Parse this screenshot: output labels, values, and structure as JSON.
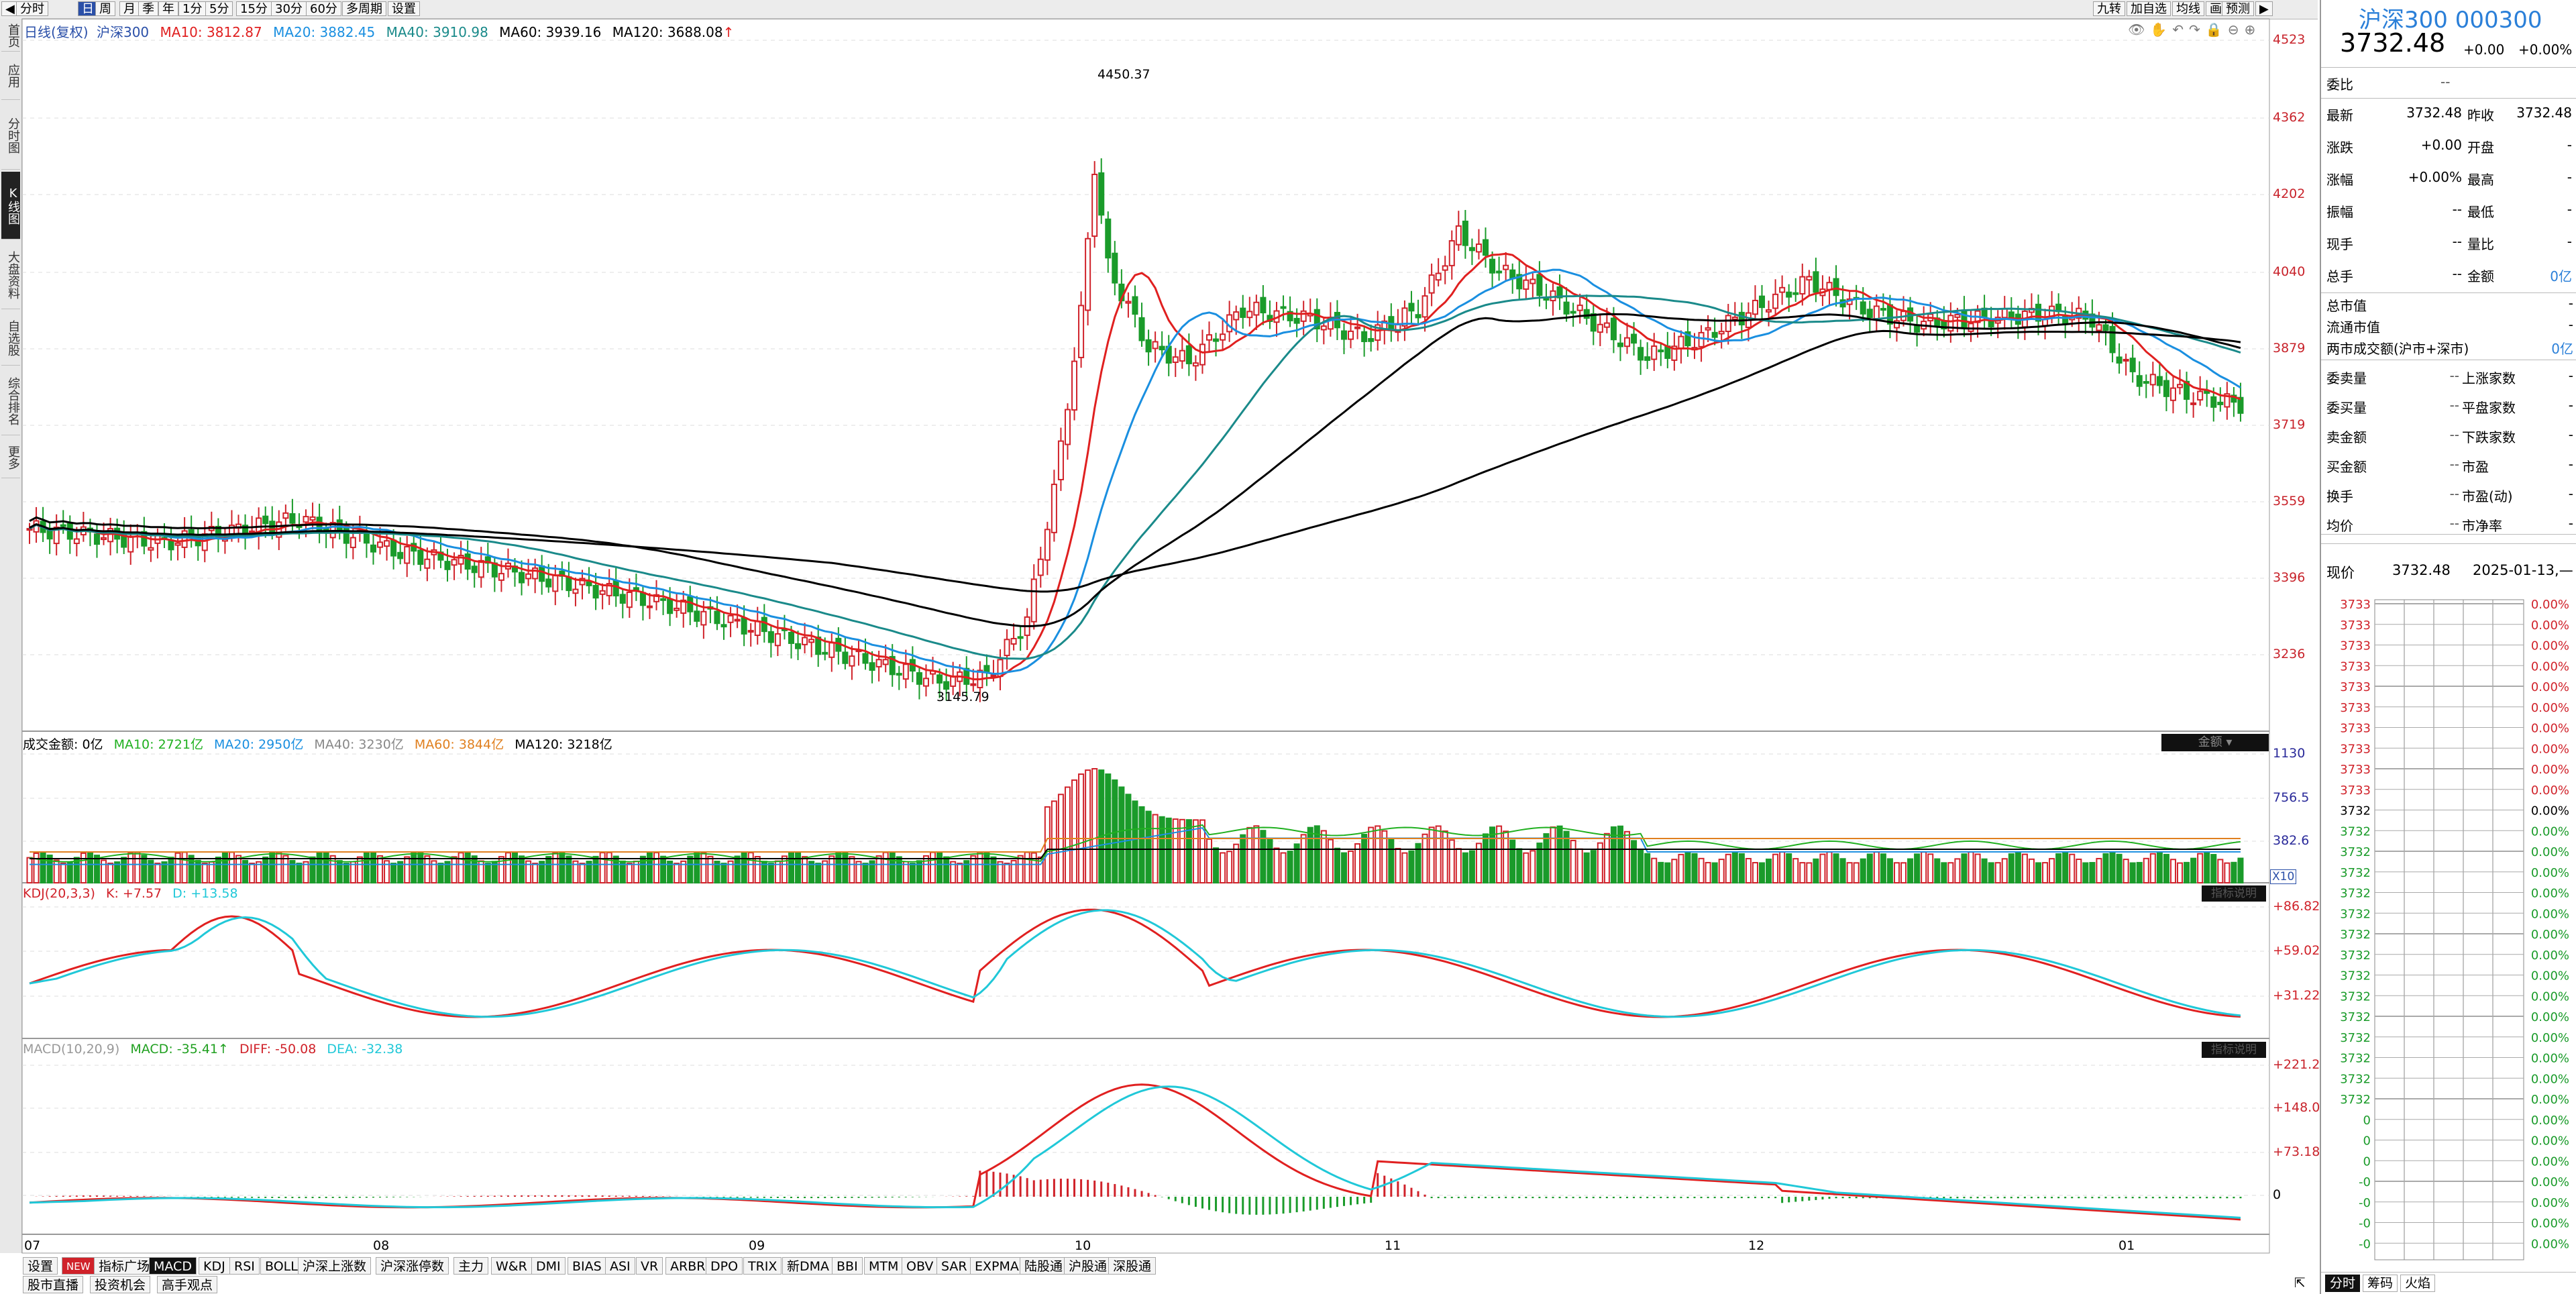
{
  "toolbar": {
    "tabs": [
      "分时",
      "日",
      "周",
      "月",
      "季",
      "年",
      "1分",
      "5分",
      "15分",
      "30分",
      "60分",
      "多周期",
      "设置"
    ],
    "selected": "日",
    "right_tools": [
      "九转",
      "加自选",
      "均线",
      "画",
      "预测"
    ]
  },
  "sidebar": [
    "首页",
    "应用",
    "分时图",
    "K线图",
    "大盘资料",
    "自选股",
    "综合排名",
    "更多"
  ],
  "sidebar_selected": "K线图",
  "main_legend": {
    "prefix": "日线(复权)",
    "name": "沪深300",
    "ma10": "MA10: 3812.87",
    "ma20": "MA20: 3882.45",
    "ma40": "MA40: 3910.98",
    "ma60": "MA60: 3939.16",
    "ma120": "MA120: 3688.08",
    "arrow": "↑"
  },
  "price_axis": [
    "4523",
    "4362",
    "4202",
    "4040",
    "3879",
    "3719",
    "3559",
    "3396",
    "3236"
  ],
  "annotations": {
    "high": "4450.37",
    "low": "3145.79"
  },
  "x_axis": [
    "07",
    "08",
    "09",
    "10",
    "11",
    "12",
    "01"
  ],
  "volume_legend": {
    "label": "成交金额: 0亿",
    "ma10": "MA10: 2721亿",
    "ma20": "MA20: 2950亿",
    "ma40": "MA40: 3230亿",
    "ma60": "MA60: 3844亿",
    "ma120": "MA120: 3218亿",
    "selector": "金额",
    "axis": [
      "1130",
      "756.5",
      "382.6"
    ],
    "unit": "X10"
  },
  "kdj_legend": {
    "label": "KDJ(20,3,3)",
    "k": "K: +7.57",
    "d": "D: +13.58",
    "axis": [
      "+86.82",
      "+59.02",
      "+31.22"
    ],
    "btn": "指标说明"
  },
  "macd_legend": {
    "label": "MACD(10,20,9)",
    "macd": "MACD: -35.41↑",
    "diff": "DIFF: -50.08",
    "dea": "DEA: -32.38",
    "axis": [
      "+221.2",
      "+148.0",
      "+73.18",
      "0"
    ],
    "btn": "指标说明"
  },
  "indicator_tabs": [
    "设置",
    "NEW",
    "指标广场",
    "MACD",
    "KDJ",
    "RSI",
    "BOLL",
    "沪深上涨数",
    "沪深涨停数",
    "主力",
    "W&R",
    "DMI",
    "BIAS",
    "ASI",
    "VR",
    "ARBR",
    "DPO",
    "TRIX",
    "新DMA",
    "BBI",
    "MTM",
    "OBV",
    "SAR",
    "EXPMA",
    "陆股通",
    "沪股通",
    "深股通"
  ],
  "indicator_selected": "MACD",
  "bottom_tabs": [
    "股市直播",
    "投资机会",
    "高手观点"
  ],
  "quote": {
    "title": "沪深300 000300",
    "price": "3732.48",
    "change": "+0.00",
    "change_pct": "+0.00%",
    "weibi_label": "委比",
    "weibi_value": "--",
    "rows": [
      {
        "l1": "最新",
        "v1": "3732.48",
        "l2": "昨收",
        "v2": "3732.48"
      },
      {
        "l1": "涨跌",
        "v1": "+0.00",
        "l2": "开盘",
        "v2": "-"
      },
      {
        "l1": "涨幅",
        "v1": "+0.00%",
        "l2": "最高",
        "v2": "-"
      },
      {
        "l1": "振幅",
        "v1": "--",
        "l2": "最低",
        "v2": "-"
      },
      {
        "l1": "现手",
        "v1": "--",
        "l2": "量比",
        "v2": "-"
      },
      {
        "l1": "总手",
        "v1": "--",
        "l2": "金额",
        "v2": "0亿"
      }
    ],
    "cap_rows": [
      {
        "l": "总市值",
        "v": "-"
      },
      {
        "l": "流通市值",
        "v": "-"
      },
      {
        "l": "两市成交额(沪市+深市)",
        "v": "0亿"
      }
    ],
    "stat_rows": [
      {
        "l1": "委卖量",
        "v1": "--",
        "l2": "上涨家数",
        "v2": "-"
      },
      {
        "l1": "委买量",
        "v1": "--",
        "l2": "平盘家数",
        "v2": "-"
      },
      {
        "l1": "卖金额",
        "v1": "--",
        "l2": "下跌家数",
        "v2": "-"
      },
      {
        "l1": "买金额",
        "v1": "--",
        "l2": "市盈",
        "v2": "-"
      },
      {
        "l1": "换手",
        "v1": "--",
        "l2": "市盈(动)",
        "v2": "-"
      },
      {
        "l1": "均价",
        "v1": "--",
        "l2": "市净率",
        "v2": "-"
      }
    ],
    "now_label": "现价",
    "now_value": "3732.48",
    "date": "2025-01-13,—",
    "mini_left": [
      "3733",
      "3733",
      "3733",
      "3733",
      "3733",
      "3733",
      "3733",
      "3733",
      "3733",
      "3733",
      "3732",
      "3732",
      "3732",
      "3732",
      "3732",
      "3732",
      "3732",
      "3732",
      "3732",
      "3732",
      "3732",
      "3732",
      "3732",
      "3732",
      "3732",
      "0",
      "0",
      "0",
      "-0",
      "-0",
      "-0",
      "-0"
    ],
    "mini_right": [
      "0.00%",
      "0.00%",
      "0.00%",
      "0.00%",
      "0.00%",
      "0.00%",
      "0.00%",
      "0.00%",
      "0.00%",
      "0.00%",
      "0.00%",
      "0.00%",
      "0.00%",
      "0.00%",
      "0.00%",
      "0.00%",
      "0.00%",
      "0.00%",
      "0.00%",
      "0.00%",
      "0.00%",
      "0.00%",
      "0.00%",
      "0.00%",
      "0.00%",
      "0.00%",
      "0.00%",
      "0.00%",
      "0.00%",
      "0.00%",
      "0.00%",
      "0.00%"
    ],
    "bottom_tabs": [
      "分时",
      "筹码",
      "火焰"
    ]
  },
  "colors": {
    "up": "#d0222a",
    "down": "#1a9b2a",
    "ma10": "#e02020",
    "ma20": "#1a8fe0",
    "ma40": "#1a8a8a",
    "ma120": "#000000",
    "k": "#e02020",
    "d": "#20c8d8"
  }
}
